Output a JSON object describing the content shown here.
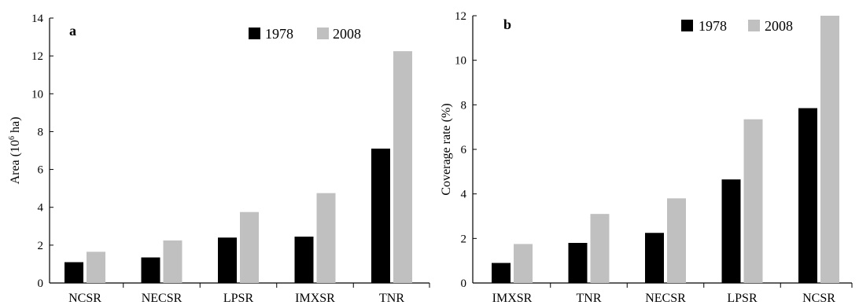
{
  "chart_data": [
    {
      "type": "bar",
      "panel_label": "a",
      "ylabel": "Area (10",
      "ylabel_sup": "6",
      "ylabel_unit": " ha)",
      "ylim": [
        0,
        14
      ],
      "yticks": [
        0,
        2,
        4,
        6,
        8,
        10,
        12,
        14
      ],
      "categories": [
        "NCSR",
        "NECSR",
        "LPSR",
        "IMXSR",
        "TNR"
      ],
      "series": [
        {
          "name": "1978",
          "color": "#000000",
          "values": [
            1.1,
            1.35,
            2.4,
            2.45,
            7.1
          ]
        },
        {
          "name": "2008",
          "color": "#c0c0c0",
          "values": [
            1.65,
            2.25,
            3.75,
            4.75,
            12.25
          ]
        }
      ],
      "legend_position": "top-right",
      "grid": false
    },
    {
      "type": "bar",
      "panel_label": "b",
      "ylabel": "Coverage rate (%)",
      "ylim": [
        0,
        12
      ],
      "yticks": [
        0,
        2,
        4,
        6,
        8,
        10,
        12
      ],
      "categories": [
        "IMXSR",
        "TNR",
        "NECSR",
        "LPSR",
        "NCSR"
      ],
      "series": [
        {
          "name": "1978",
          "color": "#000000",
          "values": [
            0.9,
            1.8,
            2.25,
            4.65,
            7.85
          ]
        },
        {
          "name": "2008",
          "color": "#c0c0c0",
          "values": [
            1.75,
            3.1,
            3.8,
            7.35,
            12.0
          ]
        }
      ],
      "legend_position": "top-right",
      "grid": false
    }
  ]
}
